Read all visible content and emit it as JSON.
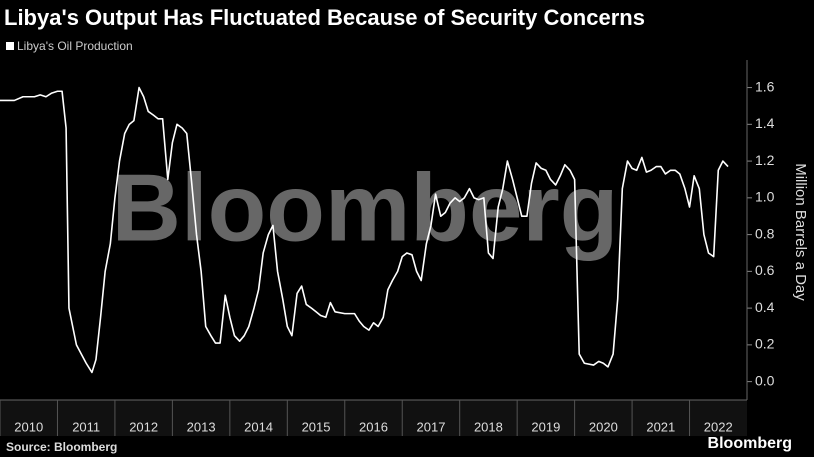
{
  "chart_data": {
    "type": "line",
    "title": "Libya's Output Has Fluctuated Because of Security Concerns",
    "y_label": "Million Barrels a Day",
    "source": "Source: Bloomberg",
    "watermark": "Bloomberg",
    "brand": "Bloomberg",
    "x": [
      2010.0,
      2010.25,
      2010.4,
      2010.6,
      2010.7,
      2010.8,
      2010.9,
      2011.0,
      2011.08,
      2011.15,
      2011.2,
      2011.33,
      2011.5,
      2011.6,
      2011.67,
      2011.75,
      2011.83,
      2011.92,
      2012.0,
      2012.08,
      2012.17,
      2012.25,
      2012.33,
      2012.42,
      2012.5,
      2012.58,
      2012.67,
      2012.75,
      2012.83,
      2012.92,
      2013.0,
      2013.08,
      2013.17,
      2013.25,
      2013.33,
      2013.42,
      2013.5,
      2013.58,
      2013.67,
      2013.75,
      2013.83,
      2013.92,
      2014.0,
      2014.08,
      2014.17,
      2014.25,
      2014.33,
      2014.42,
      2014.5,
      2014.58,
      2014.67,
      2014.75,
      2014.83,
      2014.92,
      2015.0,
      2015.08,
      2015.17,
      2015.25,
      2015.33,
      2015.42,
      2015.5,
      2015.58,
      2015.67,
      2015.75,
      2015.83,
      2016.0,
      2016.17,
      2016.25,
      2016.33,
      2016.42,
      2016.5,
      2016.58,
      2016.67,
      2016.75,
      2016.83,
      2016.92,
      2017.0,
      2017.08,
      2017.17,
      2017.25,
      2017.33,
      2017.42,
      2017.5,
      2017.58,
      2017.67,
      2017.75,
      2017.83,
      2017.92,
      2018.0,
      2018.08,
      2018.17,
      2018.25,
      2018.33,
      2018.42,
      2018.5,
      2018.58,
      2018.67,
      2018.75,
      2018.83,
      2018.92,
      2019.0,
      2019.08,
      2019.17,
      2019.25,
      2019.33,
      2019.42,
      2019.5,
      2019.58,
      2019.67,
      2019.75,
      2019.83,
      2019.92,
      2020.0,
      2020.05,
      2020.08,
      2020.17,
      2020.33,
      2020.42,
      2020.5,
      2020.58,
      2020.67,
      2020.75,
      2020.83,
      2020.92,
      2021.0,
      2021.08,
      2021.17,
      2021.25,
      2021.33,
      2021.42,
      2021.5,
      2021.58,
      2021.67,
      2021.75,
      2021.83,
      2021.92,
      2022.0,
      2022.08,
      2022.17,
      2022.25,
      2022.33,
      2022.42,
      2022.5,
      2022.58,
      2022.67
    ],
    "series": [
      {
        "name": "Libya's Oil Production",
        "color": "#ffffff",
        "values": [
          1.53,
          1.53,
          1.55,
          1.55,
          1.56,
          1.55,
          1.57,
          1.58,
          1.58,
          1.38,
          0.4,
          0.2,
          0.1,
          0.05,
          0.12,
          0.35,
          0.6,
          0.75,
          1.0,
          1.2,
          1.35,
          1.4,
          1.42,
          1.6,
          1.55,
          1.47,
          1.45,
          1.43,
          1.43,
          1.1,
          1.3,
          1.4,
          1.38,
          1.35,
          1.1,
          0.8,
          0.6,
          0.3,
          0.25,
          0.21,
          0.21,
          0.47,
          0.35,
          0.25,
          0.22,
          0.25,
          0.3,
          0.4,
          0.5,
          0.7,
          0.8,
          0.85,
          0.6,
          0.45,
          0.3,
          0.25,
          0.48,
          0.52,
          0.42,
          0.4,
          0.38,
          0.36,
          0.35,
          0.43,
          0.38,
          0.37,
          0.37,
          0.33,
          0.3,
          0.28,
          0.32,
          0.3,
          0.35,
          0.5,
          0.55,
          0.6,
          0.68,
          0.7,
          0.69,
          0.6,
          0.55,
          0.75,
          0.85,
          1.02,
          0.9,
          0.92,
          0.97,
          1.0,
          0.98,
          1.0,
          1.05,
          1.0,
          0.99,
          1.0,
          0.7,
          0.67,
          0.95,
          1.05,
          1.2,
          1.1,
          1.0,
          0.9,
          0.9,
          1.08,
          1.19,
          1.16,
          1.15,
          1.1,
          1.07,
          1.12,
          1.18,
          1.15,
          1.1,
          0.5,
          0.15,
          0.1,
          0.09,
          0.11,
          0.1,
          0.08,
          0.15,
          0.45,
          1.05,
          1.2,
          1.16,
          1.15,
          1.22,
          1.14,
          1.15,
          1.17,
          1.17,
          1.13,
          1.15,
          1.15,
          1.13,
          1.05,
          0.95,
          1.12,
          1.05,
          0.8,
          0.7,
          0.68,
          1.15,
          1.2,
          1.17
        ]
      }
    ],
    "xlim": [
      2010,
      2023
    ],
    "xticks": [
      2010,
      2011,
      2012,
      2013,
      2014,
      2015,
      2016,
      2017,
      2018,
      2019,
      2020,
      2021,
      2022
    ],
    "ylim": [
      -0.1,
      1.75
    ],
    "yticks": [
      {
        "value": 0,
        "label": "0.0"
      },
      0.2,
      0.4,
      0.6,
      0.8,
      {
        "value": 1,
        "label": "1.0"
      },
      1.2,
      1.4,
      1.6
    ],
    "yaxis_side": "right",
    "grid": false
  }
}
